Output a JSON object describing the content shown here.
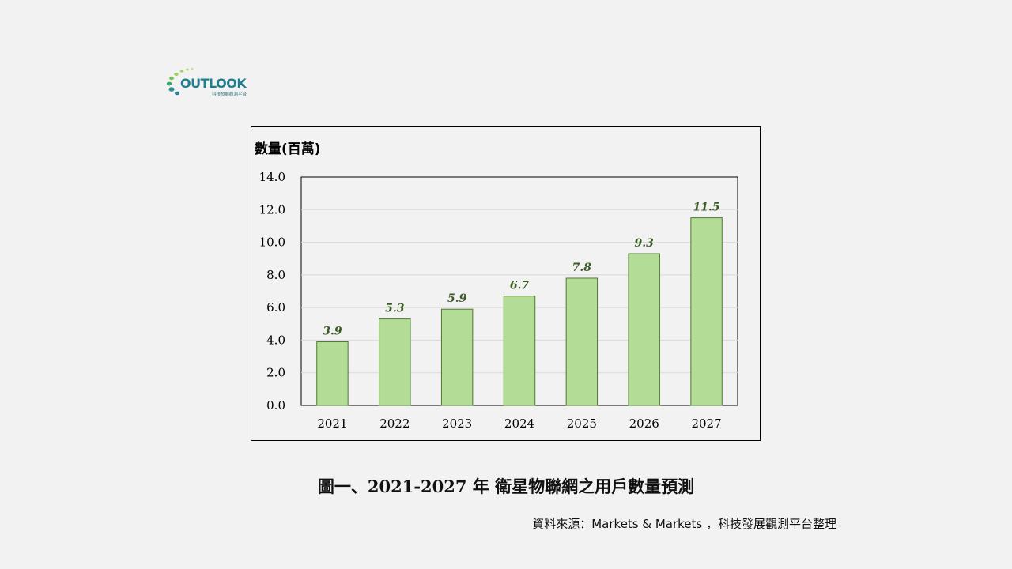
{
  "logo": {
    "wordmark": "OUTLOOK",
    "subtitle": "科技發展觀測平台"
  },
  "chart_data": {
    "type": "bar",
    "title": "",
    "ylabel": "數量(百萬)",
    "xlabel": "",
    "categories": [
      "2021",
      "2022",
      "2023",
      "2024",
      "2025",
      "2026",
      "2027"
    ],
    "values": [
      3.9,
      5.3,
      5.9,
      6.7,
      7.8,
      9.3,
      11.5
    ],
    "value_labels": [
      "3.9",
      "5.3",
      "5.9",
      "6.7",
      "7.8",
      "9.3",
      "11.5"
    ],
    "ylim": [
      0,
      14
    ],
    "yticks": [
      "0.0",
      "2.0",
      "4.0",
      "6.0",
      "8.0",
      "10.0",
      "12.0",
      "14.0"
    ],
    "ytick_values": [
      0,
      2,
      4,
      6,
      8,
      10,
      12,
      14
    ],
    "grid": true,
    "legend": "none",
    "colors": {
      "bar_fill": "#b3dc97",
      "bar_stroke": "#4f7a2e",
      "label_color": "#3a5a23",
      "grid": "#d9d9d9"
    }
  },
  "caption": "圖一、2021-2027 年 衛星物聯網之用戶數量預測",
  "source": "資料來源：Markets & Markets ，科技發展觀測平台整理"
}
